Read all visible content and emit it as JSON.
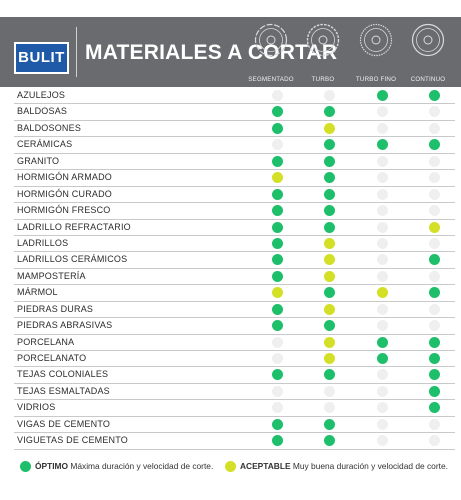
{
  "header": {
    "brand": "BULIT",
    "title": "MATERIALES A CORTAR",
    "columns": [
      "SEGMENTADO",
      "TURBO",
      "TURBO FINO",
      "CONTINUO"
    ]
  },
  "colors": {
    "optimo": "#1ebf6a",
    "aceptable": "#d3e026",
    "none": "#efefef",
    "header": "#696b6e",
    "brand": "#1e5aa8"
  },
  "rows": [
    {
      "label": "AZULEJOS",
      "status": [
        "none",
        "none",
        "optimo",
        "optimo"
      ]
    },
    {
      "label": "BALDOSAS",
      "status": [
        "optimo",
        "optimo",
        "none",
        "none"
      ]
    },
    {
      "label": "BALDOSONES",
      "status": [
        "optimo",
        "aceptable",
        "none",
        "none"
      ]
    },
    {
      "label": "CERÁMICAS",
      "status": [
        "none",
        "optimo",
        "optimo",
        "optimo"
      ]
    },
    {
      "label": "GRANITO",
      "status": [
        "optimo",
        "optimo",
        "none",
        "none"
      ]
    },
    {
      "label": "HORMIGÓN ARMADO",
      "status": [
        "aceptable",
        "optimo",
        "none",
        "none"
      ]
    },
    {
      "label": "HORMIGÓN CURADO",
      "status": [
        "optimo",
        "optimo",
        "none",
        "none"
      ]
    },
    {
      "label": "HORMIGÓN FRESCO",
      "status": [
        "optimo",
        "optimo",
        "none",
        "none"
      ]
    },
    {
      "label": "LADRILLO REFRACTARIO",
      "status": [
        "optimo",
        "optimo",
        "none",
        "aceptable"
      ]
    },
    {
      "label": "LADRILLOS",
      "status": [
        "optimo",
        "aceptable",
        "none",
        "none"
      ]
    },
    {
      "label": "LADRILLOS CERÁMICOS",
      "status": [
        "optimo",
        "aceptable",
        "none",
        "optimo"
      ]
    },
    {
      "label": "MAMPOSTERÍA",
      "status": [
        "optimo",
        "aceptable",
        "none",
        "none"
      ]
    },
    {
      "label": "MÁRMOL",
      "status": [
        "aceptable",
        "optimo",
        "aceptable",
        "optimo"
      ]
    },
    {
      "label": "PIEDRAS DURAS",
      "status": [
        "optimo",
        "aceptable",
        "none",
        "none"
      ]
    },
    {
      "label": "PIEDRAS ABRASIVAS",
      "status": [
        "optimo",
        "optimo",
        "none",
        "none"
      ]
    },
    {
      "label": "PORCELANA",
      "status": [
        "none",
        "aceptable",
        "optimo",
        "optimo"
      ]
    },
    {
      "label": "PORCELANATO",
      "status": [
        "none",
        "aceptable",
        "optimo",
        "optimo"
      ]
    },
    {
      "label": "TEJAS COLONIALES",
      "status": [
        "optimo",
        "optimo",
        "none",
        "optimo"
      ]
    },
    {
      "label": "TEJAS ESMALTADAS",
      "status": [
        "none",
        "none",
        "none",
        "optimo"
      ]
    },
    {
      "label": "VIDRIOS",
      "status": [
        "none",
        "none",
        "none",
        "optimo"
      ]
    },
    {
      "label": "VIGAS DE CEMENTO",
      "status": [
        "optimo",
        "optimo",
        "none",
        "none"
      ]
    },
    {
      "label": "VIGUETAS DE CEMENTO",
      "status": [
        "optimo",
        "optimo",
        "none",
        "none"
      ]
    }
  ],
  "legend": {
    "optimo_label": "ÓPTIMO",
    "optimo_text": "Máxima duración y velocidad de corte.",
    "aceptable_label": "ACEPTABLE",
    "aceptable_text": "Muy buena duración y velocidad de corte."
  }
}
